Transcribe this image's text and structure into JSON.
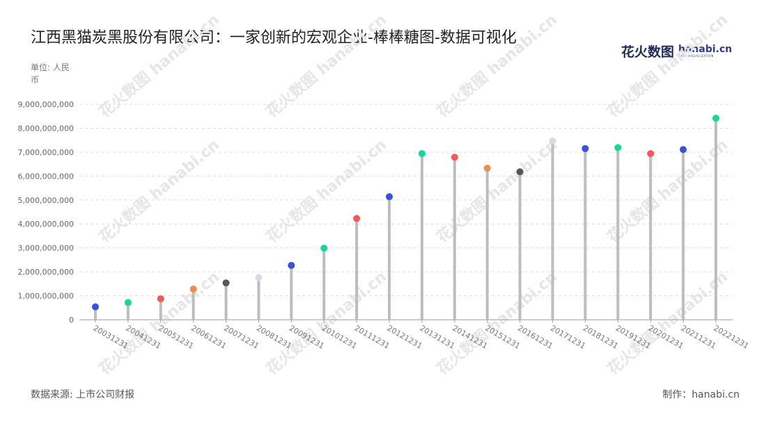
{
  "header": {
    "title": "江西黑猫炭黑股份有限公司：一家创新的宏观企业-棒棒糖图-数据可视化",
    "unit": "单位: 人民币"
  },
  "logo": {
    "cn": "花火数图",
    "en": "hanabi.cn",
    "sub": "DATA VISUALIZATION"
  },
  "footer": {
    "source": "数据来源: 上市公司财报",
    "maker": "制作：hanabi.cn"
  },
  "watermark": "花火数图 hanabi.cn",
  "chart_data": {
    "type": "lollipop",
    "categories": [
      "20031231",
      "20041231",
      "20051231",
      "20061231",
      "20071231",
      "20081231",
      "20091231",
      "20101231",
      "20111231",
      "20121231",
      "20131231",
      "20141231",
      "20151231",
      "20161231",
      "20171231",
      "20181231",
      "20191231",
      "20201231",
      "20211231",
      "20221231"
    ],
    "values": [
      540000000,
      720000000,
      880000000,
      1280000000,
      1540000000,
      1760000000,
      2270000000,
      2990000000,
      4230000000,
      5140000000,
      6940000000,
      6790000000,
      6330000000,
      6180000000,
      7470000000,
      7150000000,
      7190000000,
      6940000000,
      7110000000,
      8420000000
    ],
    "dot_colors": [
      "#3b4fe0",
      "#11d99a",
      "#f25a5a",
      "#f58a4b",
      "#55565e",
      "#d8dbe6",
      "#3b4fe0",
      "#11d99a",
      "#f25a5a",
      "#3b4fe0",
      "#11d99a",
      "#f25a5a",
      "#f58a4b",
      "#55565e",
      "#d8dbe6",
      "#3b4fe0",
      "#11d99a",
      "#f25a5a",
      "#3b4fe0",
      "#11d99a"
    ],
    "stem_color": "#bdbdbd",
    "yticks": [
      "0",
      "1,000,000,000",
      "2,000,000,000",
      "3,000,000,000",
      "4,000,000,000",
      "5,000,000,000",
      "6,000,000,000",
      "7,000,000,000",
      "8,000,000,000",
      "9,000,000,000"
    ],
    "ylim": [
      0,
      9000000000
    ],
    "grid": true
  }
}
